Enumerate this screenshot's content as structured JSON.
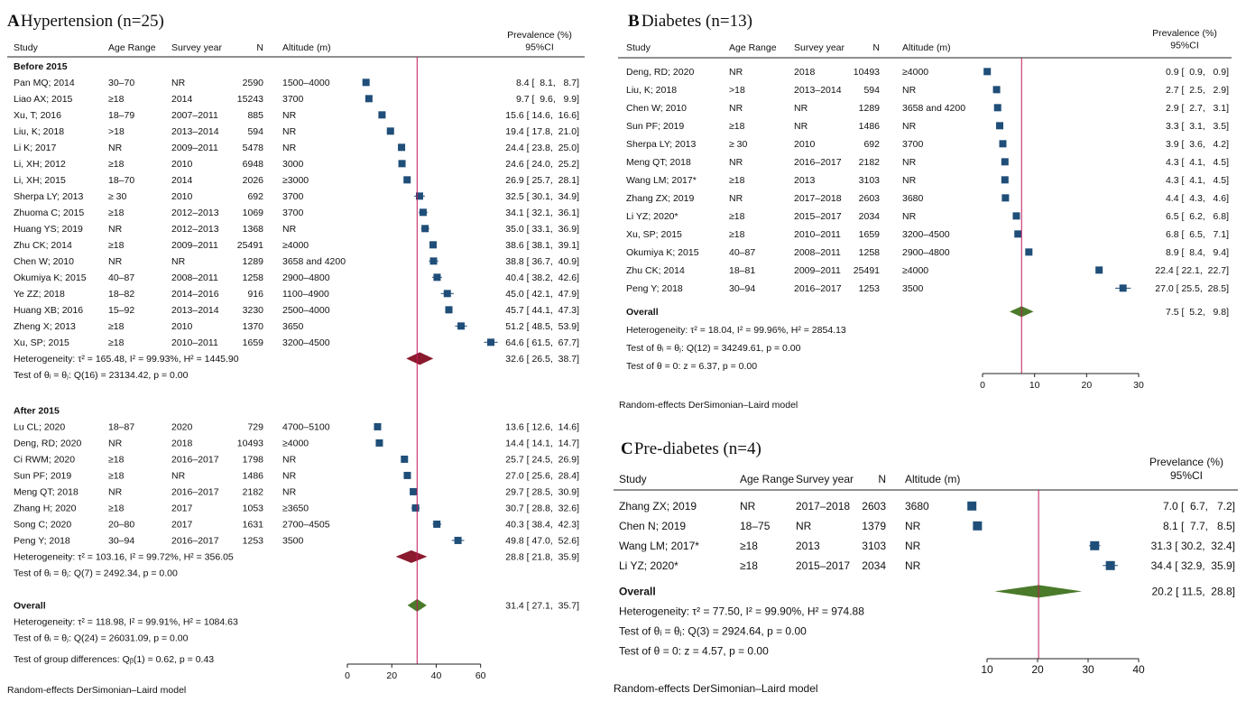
{
  "colors": {
    "marker": "#1f4e79",
    "diamond_a": "#8b1a2e",
    "diamond_bc": "#4a7a2a",
    "refline": "#c2185b",
    "text": "#111111"
  },
  "chart_data": [
    {
      "type": "forest",
      "panel_letter": "A",
      "title": "Hypertension (n=25)",
      "columns": {
        "study": "Study",
        "age": "Age Range",
        "year": "Survey year",
        "n": "N",
        "alt": "Altitude (m)",
        "prev": "Prevalence (%)",
        "ci": "95%CI"
      },
      "xaxis": {
        "min": 0,
        "max": 65,
        "ticks": [
          0,
          20,
          40,
          60
        ]
      },
      "overall_line": 31.4,
      "groups": [
        {
          "title": "Before 2015",
          "studies": [
            {
              "study": "Pan MQ; 2014",
              "age": "30–70",
              "year": "NR",
              "n": "2590",
              "alt": "1500–4000",
              "est": 8.4,
              "lo": 8.1,
              "hi": 8.7,
              "ci_text": "8.4 [  8.1,   8.7]"
            },
            {
              "study": "Liao AX; 2015",
              "age": "≥18",
              "year": "2014",
              "n": "15243",
              "alt": "3700",
              "est": 9.7,
              "lo": 9.6,
              "hi": 9.9,
              "ci_text": "9.7 [  9.6,   9.9]"
            },
            {
              "study": "Xu, T; 2016",
              "age": "18–79",
              "year": "2007–2011",
              "n": "885",
              "alt": "NR",
              "est": 15.6,
              "lo": 14.6,
              "hi": 16.6,
              "ci_text": "15.6 [ 14.6,  16.6]"
            },
            {
              "study": "Liu, K; 2018",
              "age": ">18",
              "year": "2013–2014",
              "n": "594",
              "alt": "NR",
              "est": 19.4,
              "lo": 17.8,
              "hi": 21.0,
              "ci_text": "19.4 [ 17.8,  21.0]"
            },
            {
              "study": "Li K; 2017",
              "age": "NR",
              "year": "2009–2011",
              "n": "5478",
              "alt": "NR",
              "est": 24.4,
              "lo": 23.8,
              "hi": 25.0,
              "ci_text": "24.4 [ 23.8,  25.0]"
            },
            {
              "study": "Li, XH; 2012",
              "age": "≥18",
              "year": "2010",
              "n": "6948",
              "alt": "3000",
              "est": 24.6,
              "lo": 24.0,
              "hi": 25.2,
              "ci_text": "24.6 [ 24.0,  25.2]"
            },
            {
              "study": "Li, XH; 2015",
              "age": "18–70",
              "year": "2014",
              "n": "2026",
              "alt": "≥3000",
              "est": 26.9,
              "lo": 25.7,
              "hi": 28.1,
              "ci_text": "26.9 [ 25.7,  28.1]"
            },
            {
              "study": "Sherpa LY; 2013",
              "age": "≥ 30",
              "year": "2010",
              "n": "692",
              "alt": "3700",
              "est": 32.5,
              "lo": 30.1,
              "hi": 34.9,
              "ci_text": "32.5 [ 30.1,  34.9]"
            },
            {
              "study": "Zhuoma C; 2015",
              "age": "≥18",
              "year": "2012–2013",
              "n": "1069",
              "alt": "3700",
              "est": 34.1,
              "lo": 32.1,
              "hi": 36.1,
              "ci_text": "34.1 [ 32.1,  36.1]"
            },
            {
              "study": "Huang YS; 2019",
              "age": "NR",
              "year": "2012–2013",
              "n": "1368",
              "alt": "NR",
              "est": 35.0,
              "lo": 33.1,
              "hi": 36.9,
              "ci_text": "35.0 [ 33.1,  36.9]"
            },
            {
              "study": "Zhu CK; 2014",
              "age": "≥18",
              "year": "2009–2011",
              "n": "25491",
              "alt": "≥4000",
              "est": 38.6,
              "lo": 38.1,
              "hi": 39.1,
              "ci_text": "38.6 [ 38.1,  39.1]"
            },
            {
              "study": "Chen W; 2010",
              "age": "NR",
              "year": "NR",
              "n": "1289",
              "alt": "3658 and 4200",
              "est": 38.8,
              "lo": 36.7,
              "hi": 40.9,
              "ci_text": "38.8 [ 36.7,  40.9]"
            },
            {
              "study": "Okumiya K; 2015",
              "age": "40–87",
              "year": "2008–2011",
              "n": "1258",
              "alt": "2900–4800",
              "est": 40.4,
              "lo": 38.2,
              "hi": 42.6,
              "ci_text": "40.4 [ 38.2,  42.6]"
            },
            {
              "study": "Ye ZZ; 2018",
              "age": "18–82",
              "year": "2014–2016",
              "n": "916",
              "alt": "1100–4900",
              "est": 45.0,
              "lo": 42.1,
              "hi": 47.9,
              "ci_text": "45.0 [ 42.1,  47.9]"
            },
            {
              "study": "Huang XB; 2016",
              "age": "15–92",
              "year": "2013–2014",
              "n": "3230",
              "alt": "2500–4000",
              "est": 45.7,
              "lo": 44.1,
              "hi": 47.3,
              "ci_text": "45.7 [ 44.1,  47.3]"
            },
            {
              "study": "Zheng X; 2013",
              "age": "≥18",
              "year": "2010",
              "n": "1370",
              "alt": "3650",
              "est": 51.2,
              "lo": 48.5,
              "hi": 53.9,
              "ci_text": "51.2 [ 48.5,  53.9]"
            },
            {
              "study": "Xu, SP; 2015",
              "age": "≥18",
              "year": "2010–2011",
              "n": "1659",
              "alt": "3200–4500",
              "est": 64.6,
              "lo": 61.5,
              "hi": 67.7,
              "ci_text": "64.6 [ 61.5,  67.7]"
            }
          ],
          "summary": {
            "est": 32.6,
            "lo": 26.5,
            "hi": 38.7,
            "ci_text": "32.6 [ 26.5,  38.7]"
          },
          "het_text": "Heterogeneity: τ² = 165.48, I² = 99.93%, H² = 1445.90",
          "test_text": "Test of θᵢ = θⱼ: Q(16) = 23134.42, p = 0.00"
        },
        {
          "title": "After 2015",
          "studies": [
            {
              "study": "Lu CL; 2020",
              "age": "18–87",
              "year": "2020",
              "n": "729",
              "alt": "4700–5100",
              "est": 13.6,
              "lo": 12.6,
              "hi": 14.6,
              "ci_text": "13.6 [ 12.6,  14.6]"
            },
            {
              "study": "Deng, RD; 2020",
              "age": "NR",
              "year": "2018",
              "n": "10493",
              "alt": "≥4000",
              "est": 14.4,
              "lo": 14.1,
              "hi": 14.7,
              "ci_text": "14.4 [ 14.1,  14.7]"
            },
            {
              "study": "Ci RWM; 2020",
              "age": "≥18",
              "year": "2016–2017",
              "n": "1798",
              "alt": "NR",
              "est": 25.7,
              "lo": 24.5,
              "hi": 26.9,
              "ci_text": "25.7 [ 24.5,  26.9]"
            },
            {
              "study": "Sun PF; 2019",
              "age": "≥18",
              "year": "NR",
              "n": "1486",
              "alt": "NR",
              "est": 27.0,
              "lo": 25.6,
              "hi": 28.4,
              "ci_text": "27.0 [ 25.6,  28.4]"
            },
            {
              "study": "Meng QT; 2018",
              "age": "NR",
              "year": "2016–2017",
              "n": "2182",
              "alt": "NR",
              "est": 29.7,
              "lo": 28.5,
              "hi": 30.9,
              "ci_text": "29.7 [ 28.5,  30.9]"
            },
            {
              "study": "Zhang H; 2020",
              "age": "≥18",
              "year": "2017",
              "n": "1053",
              "alt": "≥3650",
              "est": 30.7,
              "lo": 28.8,
              "hi": 32.6,
              "ci_text": "30.7 [ 28.8,  32.6]"
            },
            {
              "study": "Song C;  2020",
              "age": "20–80",
              "year": "2017",
              "n": "1631",
              "alt": "2700–4505",
              "est": 40.3,
              "lo": 38.4,
              "hi": 42.3,
              "ci_text": "40.3 [ 38.4,  42.3]"
            },
            {
              "study": "Peng Y; 2018",
              "age": "30–94",
              "year": "2016–2017",
              "n": "1253",
              "alt": "3500",
              "est": 49.8,
              "lo": 47.0,
              "hi": 52.6,
              "ci_text": "49.8 [ 47.0,  52.6]"
            }
          ],
          "summary": {
            "est": 28.8,
            "lo": 21.8,
            "hi": 35.9,
            "ci_text": "28.8 [ 21.8,  35.9]"
          },
          "het_text": "Heterogeneity: τ² = 103.16, I² = 99.72%, H² = 356.05",
          "test_text": "Test of θᵢ = θⱼ: Q(7) = 2492.34, p = 0.00"
        }
      ],
      "overall": {
        "label": "Overall",
        "est": 31.4,
        "lo": 27.1,
        "hi": 35.7,
        "ci_text": "31.4 [ 27.1,  35.7]"
      },
      "overall_het": "Heterogeneity: τ² = 118.98, I² = 99.91%, H² = 1084.63",
      "overall_test": "Test of θᵢ = θⱼ: Q(24) = 26031.09, p = 0.00",
      "group_diff": "Test of group differences: Qᵦ(1) = 0.62, p = 0.43",
      "model_note": "Random-effects DerSimonian–Laird model"
    },
    {
      "type": "forest",
      "panel_letter": "B",
      "title": "Diabetes (n=13)",
      "columns": {
        "study": "Study",
        "age": "Age Range",
        "year": "Survey year",
        "n": "N",
        "alt": "Altitude (m)",
        "prev": "Prevalence (%)",
        "ci": "95%CI"
      },
      "xaxis": {
        "min": 0,
        "max": 30,
        "ticks": [
          0,
          10,
          20,
          30
        ]
      },
      "overall_line": 7.5,
      "studies": [
        {
          "study": "Deng, RD; 2020",
          "age": "NR",
          "year": "2018",
          "n": "10493",
          "alt": "≥4000",
          "est": 0.9,
          "lo": 0.9,
          "hi": 0.9,
          "ci_text": "0.9 [  0.9,   0.9]"
        },
        {
          "study": "Liu, K; 2018",
          "age": ">18",
          "year": "2013–2014",
          "n": "594",
          "alt": "NR",
          "est": 2.7,
          "lo": 2.5,
          "hi": 2.9,
          "ci_text": "2.7 [  2.5,   2.9]"
        },
        {
          "study": "Chen W; 2010",
          "age": "NR",
          "year": "NR",
          "n": "1289",
          "alt": "3658 and 4200",
          "est": 2.9,
          "lo": 2.7,
          "hi": 3.1,
          "ci_text": "2.9 [  2.7,   3.1]"
        },
        {
          "study": "Sun PF; 2019",
          "age": "≥18",
          "year": "NR",
          "n": "1486",
          "alt": "NR",
          "est": 3.3,
          "lo": 3.1,
          "hi": 3.5,
          "ci_text": "3.3 [  3.1,   3.5]"
        },
        {
          "study": "Sherpa LY; 2013",
          "age": "≥ 30",
          "year": "2010",
          "n": "692",
          "alt": "3700",
          "est": 3.9,
          "lo": 3.6,
          "hi": 4.2,
          "ci_text": "3.9 [  3.6,   4.2]"
        },
        {
          "study": "Meng QT; 2018",
          "age": "NR",
          "year": "2016–2017",
          "n": "2182",
          "alt": "NR",
          "est": 4.3,
          "lo": 4.1,
          "hi": 4.5,
          "ci_text": "4.3 [  4.1,   4.5]"
        },
        {
          "study": "Wang LM; 2017*",
          "age": "≥18",
          "year": "2013",
          "n": "3103",
          "alt": "NR",
          "est": 4.3,
          "lo": 4.1,
          "hi": 4.5,
          "ci_text": "4.3 [  4.1,   4.5]"
        },
        {
          "study": "Zhang ZX; 2019",
          "age": "NR",
          "year": "2017–2018",
          "n": "2603",
          "alt": "3680",
          "est": 4.4,
          "lo": 4.3,
          "hi": 4.6,
          "ci_text": "4.4 [  4.3,   4.6]"
        },
        {
          "study": "Li YZ; 2020*",
          "age": "≥18",
          "year": "2015–2017",
          "n": "2034",
          "alt": "NR",
          "est": 6.5,
          "lo": 6.2,
          "hi": 6.8,
          "ci_text": "6.5 [  6.2,   6.8]"
        },
        {
          "study": "Xu, SP; 2015",
          "age": "≥18",
          "year": "2010–2011",
          "n": "1659",
          "alt": "3200–4500",
          "est": 6.8,
          "lo": 6.5,
          "hi": 7.1,
          "ci_text": "6.8 [  6.5,   7.1]"
        },
        {
          "study": "Okumiya K; 2015",
          "age": "40–87",
          "year": "2008–2011",
          "n": "1258",
          "alt": "2900–4800",
          "est": 8.9,
          "lo": 8.4,
          "hi": 9.4,
          "ci_text": "8.9 [  8.4,   9.4]"
        },
        {
          "study": "Zhu CK; 2014",
          "age": "18–81",
          "year": "2009–2011",
          "n": "25491",
          "alt": "≥4000",
          "est": 22.4,
          "lo": 22.1,
          "hi": 22.7,
          "ci_text": "22.4 [ 22.1,  22.7]"
        },
        {
          "study": "Peng Y; 2018",
          "age": "30–94",
          "year": "2016–2017",
          "n": "1253",
          "alt": "3500",
          "est": 27.0,
          "lo": 25.5,
          "hi": 28.5,
          "ci_text": "27.0 [ 25.5,  28.5]"
        }
      ],
      "overall": {
        "label": "Overall",
        "est": 7.5,
        "lo": 5.2,
        "hi": 9.8,
        "ci_text": "7.5 [  5.2,   9.8]"
      },
      "overall_het": "Heterogeneity: τ² = 18.04, I² = 99.96%, H² = 2854.13",
      "overall_test": "Test of θᵢ = θⱼ: Q(12) = 34249.61, p = 0.00",
      "overall_zero": "Test of θ = 0: z = 6.37, p = 0.00",
      "model_note": "Random-effects DerSimonian–Laird model"
    },
    {
      "type": "forest",
      "panel_letter": "C",
      "title": "Pre-diabetes (n=4)",
      "columns": {
        "study": "Study",
        "age": "Age Range",
        "year": "Survey year",
        "n": "N",
        "alt": "Altitude (m)",
        "prev": "Prevelance (%)",
        "ci": "95%CI"
      },
      "xaxis": {
        "min": 5,
        "max": 40,
        "ticks": [
          10,
          20,
          30,
          40
        ]
      },
      "overall_line": 20.2,
      "studies": [
        {
          "study": "Zhang ZX; 2019",
          "age": "NR",
          "year": "2017–2018",
          "n": "2603",
          "alt": "3680",
          "est": 7.0,
          "lo": 6.7,
          "hi": 7.2,
          "ci_text": "7.0 [  6.7,   7.2]"
        },
        {
          "study": "Chen N; 2019",
          "age": "18–75",
          "year": "NR",
          "n": "1379",
          "alt": "NR",
          "est": 8.1,
          "lo": 7.7,
          "hi": 8.5,
          "ci_text": "8.1 [  7.7,   8.5]"
        },
        {
          "study": "Wang LM; 2017*",
          "age": "≥18",
          "year": "2013",
          "n": "3103",
          "alt": "NR",
          "est": 31.3,
          "lo": 30.2,
          "hi": 32.4,
          "ci_text": "31.3 [ 30.2,  32.4]"
        },
        {
          "study": "Li YZ; 2020*",
          "age": "≥18",
          "year": "2015–2017",
          "n": "2034",
          "alt": "NR",
          "est": 34.4,
          "lo": 32.9,
          "hi": 35.9,
          "ci_text": "34.4 [ 32.9,  35.9]"
        }
      ],
      "overall": {
        "label": "Overall",
        "est": 20.2,
        "lo": 11.5,
        "hi": 28.8,
        "ci_text": "20.2 [ 11.5,  28.8]"
      },
      "overall_het": "Heterogeneity: τ² = 77.50, I² = 99.90%, H² = 974.88",
      "overall_test": "Test of θᵢ = θⱼ: Q(3) = 2924.64, p = 0.00",
      "overall_zero": "Test of θ = 0: z = 4.57, p = 0.00",
      "model_note": "Random-effects DerSimonian–Laird model"
    }
  ]
}
